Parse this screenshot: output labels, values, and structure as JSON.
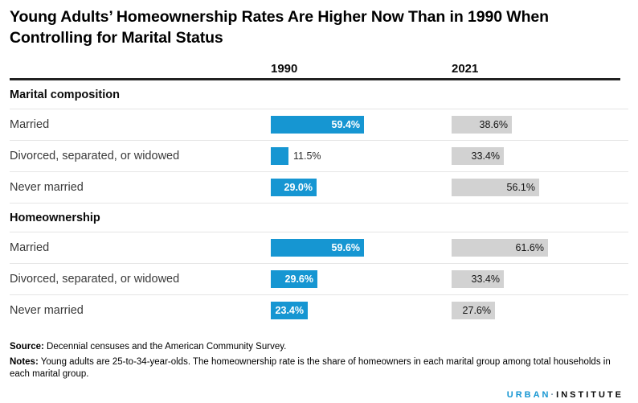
{
  "title": {
    "line1": "Young Adults’ Homeownership Rates Are Higher Now Than in 1990 When",
    "line2": "Controlling for Marital Status"
  },
  "columns": {
    "year_left": "1990",
    "year_right": "2021"
  },
  "chart_data": {
    "type": "bar",
    "orientation": "horizontal",
    "unit": "%",
    "value_range": [
      0,
      100
    ],
    "series": [
      "1990",
      "2021"
    ],
    "colors": {
      "series_1990": "#1696d2",
      "series_2021": "#d2d2d2"
    },
    "groups": [
      {
        "section": "Marital composition",
        "rows": [
          {
            "label": "Married",
            "v1990": 59.4,
            "v2021": 38.6
          },
          {
            "label": "Divorced, separated, or widowed",
            "v1990": 11.5,
            "v2021": 33.4
          },
          {
            "label": "Never married",
            "v1990": 29.0,
            "v2021": 56.1
          }
        ]
      },
      {
        "section": "Homeownership",
        "rows": [
          {
            "label": "Married",
            "v1990": 59.6,
            "v2021": 61.6
          },
          {
            "label": "Divorced, separated, or widowed",
            "v1990": 29.6,
            "v2021": 33.4
          },
          {
            "label": "Never married",
            "v1990": 23.4,
            "v2021": 27.6
          }
        ]
      }
    ]
  },
  "footer": {
    "source_label": "Source:",
    "source_text": " Decennial censuses and the American Community Survey.",
    "notes_label": "Notes:",
    "notes_text": " Young adults are 25-to-34-year-olds. The homeownership rate is the share of homeowners in each marital group among total households in each marital group.",
    "logo_part1": "URBAN",
    "logo_separator": "·",
    "logo_part2": "INSTITUTE"
  }
}
